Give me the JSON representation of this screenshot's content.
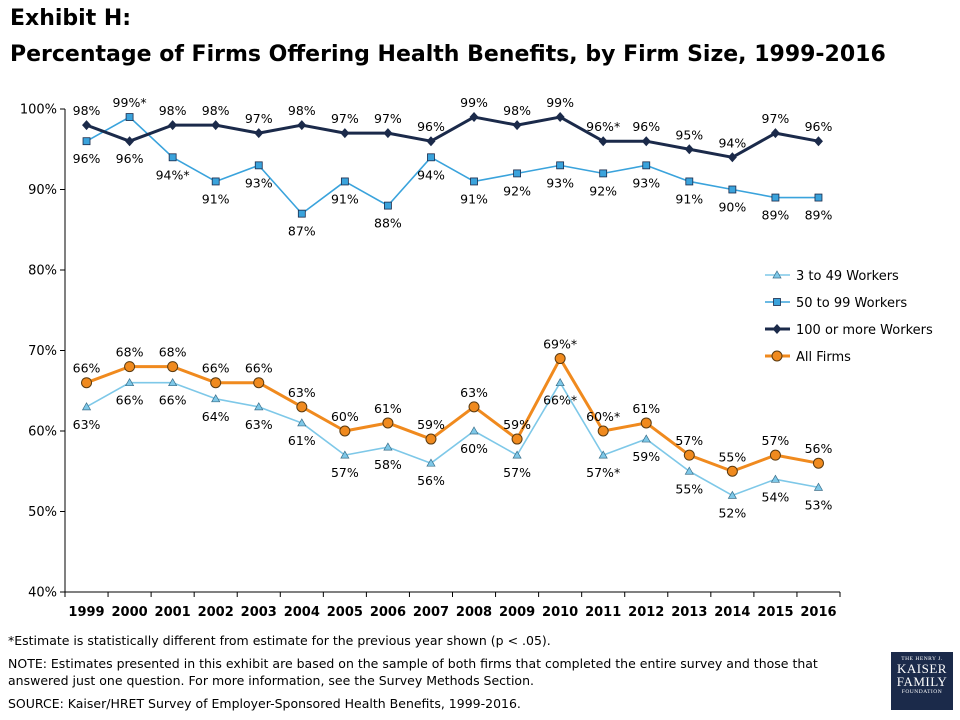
{
  "title_line1": "Exhibit H:",
  "title_line2": "Percentage of Firms Offering Health Benefits, by Firm Size, 1999-2016",
  "chart_data": {
    "type": "line",
    "x": [
      1999,
      2000,
      2001,
      2002,
      2003,
      2004,
      2005,
      2006,
      2007,
      2008,
      2009,
      2010,
      2011,
      2012,
      2013,
      2014,
      2015,
      2016
    ],
    "ylim": [
      40,
      100
    ],
    "yticks": [
      "40%",
      "50%",
      "60%",
      "70%",
      "80%",
      "90%",
      "100%"
    ],
    "grid": false,
    "legend_position": "right",
    "series": [
      {
        "name": "3 to 49 Workers",
        "color": "#7ec8e8",
        "marker": "triangle",
        "values": [
          63,
          66,
          66,
          64,
          63,
          61,
          57,
          58,
          56,
          60,
          57,
          66,
          57,
          59,
          55,
          52,
          54,
          53
        ],
        "labels": [
          "63%",
          "66%",
          "66%",
          "64%",
          "63%",
          "61%",
          "57%",
          "58%",
          "56%",
          "60%",
          "57%",
          "66%*",
          "57%*",
          "59%",
          "55%",
          "52%",
          "54%",
          "53%"
        ]
      },
      {
        "name": "50 to 99 Workers",
        "color": "#3aa3dc",
        "marker": "square",
        "values": [
          96,
          99,
          94,
          91,
          93,
          87,
          91,
          88,
          94,
          91,
          92,
          93,
          92,
          93,
          91,
          90,
          89,
          89
        ],
        "labels": [
          "96%",
          "99%*",
          "94%*",
          "91%",
          "93%",
          "87%",
          "91%",
          "88%",
          "94%",
          "91%",
          "92%",
          "93%",
          "92%",
          "93%",
          "91%",
          "90%",
          "89%",
          "89%"
        ]
      },
      {
        "name": "100 or more Workers",
        "color": "#1b2a4a",
        "marker": "diamond",
        "values": [
          98,
          96,
          98,
          98,
          97,
          98,
          97,
          97,
          96,
          99,
          98,
          99,
          96,
          96,
          95,
          94,
          97,
          96
        ],
        "labels": [
          "98%",
          "96%",
          "98%",
          "98%",
          "97%",
          "98%",
          "97%",
          "97%",
          "96%",
          "99%",
          "98%",
          "99%",
          "96%*",
          "96%",
          "95%",
          "94%",
          "97%",
          "96%"
        ]
      },
      {
        "name": "All Firms",
        "color": "#f08a1e",
        "marker": "circle",
        "values": [
          66,
          68,
          68,
          66,
          66,
          63,
          60,
          61,
          59,
          63,
          59,
          69,
          60,
          61,
          57,
          55,
          57,
          56
        ],
        "labels": [
          "66%",
          "68%",
          "68%",
          "66%",
          "66%",
          "63%",
          "60%",
          "61%",
          "59%",
          "63%",
          "59%",
          "69%*",
          "60%*",
          "61%",
          "57%",
          "55%",
          "57%",
          "56%"
        ]
      }
    ]
  },
  "footnotes": {
    "significance": "*Estimate is statistically different from estimate for the previous year shown (p < .05).",
    "note": "NOTE: Estimates presented in this exhibit are based on the sample of both firms that completed the entire survey and those that answered just one question. For more information, see the Survey Methods Section.",
    "source": "SOURCE:  Kaiser/HRET Survey of Employer-Sponsored Health Benefits, 1999-2016."
  },
  "logo": {
    "line1": "THE HENRY J.",
    "line2": "KAISER",
    "line3": "FAMILY",
    "line4": "FOUNDATION"
  }
}
